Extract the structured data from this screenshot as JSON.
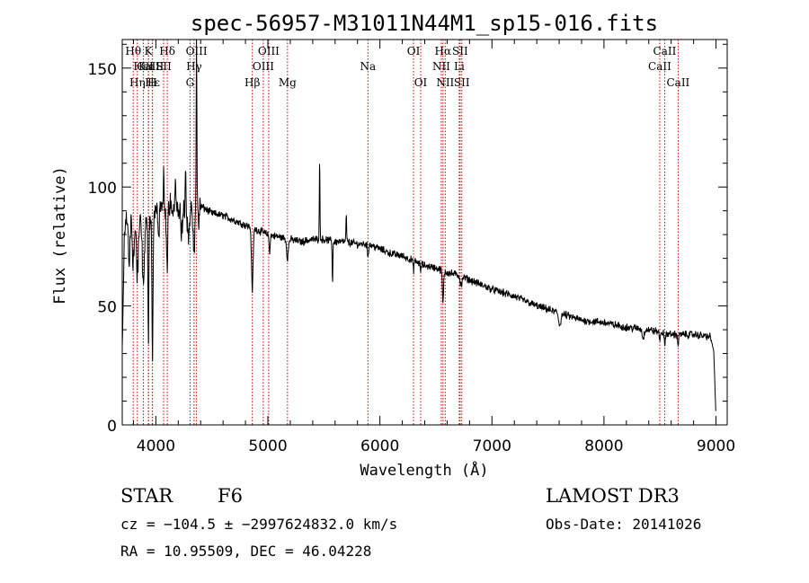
{
  "chart_data": {
    "type": "line",
    "title": "spec-56957-M31011N44M1_sp15-016.fits",
    "xlabel": "Wavelength (Å)",
    "ylabel": "Flux (relative)",
    "xlim": [
      3700,
      9100
    ],
    "ylim": [
      0,
      162
    ],
    "xticks": [
      4000,
      5000,
      6000,
      7000,
      8000,
      9000
    ],
    "yticks": [
      0,
      50,
      100,
      150
    ],
    "line_color": "#000000",
    "marker_color": "#cc0000",
    "continuum": [
      [
        3700,
        30
      ],
      [
        3720,
        80
      ],
      [
        3750,
        92
      ],
      [
        3800,
        84
      ],
      [
        3850,
        86
      ],
      [
        3900,
        88
      ],
      [
        3950,
        87
      ],
      [
        4000,
        90
      ],
      [
        4050,
        92
      ],
      [
        4100,
        93
      ],
      [
        4150,
        91
      ],
      [
        4200,
        90
      ],
      [
        4250,
        89
      ],
      [
        4300,
        91
      ],
      [
        4350,
        92
      ],
      [
        4400,
        92
      ],
      [
        4500,
        89
      ],
      [
        4600,
        88
      ],
      [
        4700,
        86
      ],
      [
        4800,
        84
      ],
      [
        4900,
        82
      ],
      [
        5000,
        80
      ],
      [
        5100,
        79
      ],
      [
        5200,
        78
      ],
      [
        5300,
        77
      ],
      [
        5400,
        78
      ],
      [
        5500,
        78
      ],
      [
        5600,
        77
      ],
      [
        5700,
        77
      ],
      [
        5800,
        76
      ],
      [
        5900,
        76
      ],
      [
        6000,
        74
      ],
      [
        6100,
        72
      ],
      [
        6200,
        71
      ],
      [
        6300,
        69
      ],
      [
        6400,
        67
      ],
      [
        6500,
        66
      ],
      [
        6600,
        64
      ],
      [
        6700,
        63
      ],
      [
        6800,
        61
      ],
      [
        6900,
        59
      ],
      [
        7000,
        57
      ],
      [
        7200,
        54
      ],
      [
        7400,
        50
      ],
      [
        7600,
        47
      ],
      [
        7800,
        44
      ],
      [
        8000,
        43
      ],
      [
        8200,
        41
      ],
      [
        8400,
        40
      ],
      [
        8600,
        38
      ],
      [
        8800,
        38
      ],
      [
        8950,
        37
      ],
      [
        8980,
        31
      ],
      [
        9000,
        3
      ]
    ],
    "features": [
      [
        3730,
        1,
        4
      ],
      [
        3760,
        -25,
        7
      ],
      [
        3798,
        -18,
        8
      ],
      [
        3835,
        -22,
        8
      ],
      [
        3889,
        -30,
        9
      ],
      [
        3933,
        -55,
        4
      ],
      [
        3970,
        -60,
        5
      ],
      [
        4026,
        -12,
        4
      ],
      [
        4070,
        18,
        3
      ],
      [
        4101,
        -25,
        8
      ],
      [
        4110,
        14,
        3
      ],
      [
        4175,
        15,
        3
      ],
      [
        4230,
        -10,
        6
      ],
      [
        4265,
        18,
        3
      ],
      [
        4290,
        -12,
        8
      ],
      [
        4340,
        -20,
        8
      ],
      [
        4363,
        75,
        3
      ],
      [
        4383,
        -8,
        4
      ],
      [
        4861,
        -26,
        7
      ],
      [
        5015,
        -7,
        5
      ],
      [
        5175,
        -8,
        8
      ],
      [
        5462,
        33,
        3
      ],
      [
        5577,
        -18,
        3
      ],
      [
        5700,
        11,
        3
      ],
      [
        5893,
        -5,
        5
      ],
      [
        6300,
        -4,
        4
      ],
      [
        6364,
        -3,
        4
      ],
      [
        6563,
        -14,
        5
      ],
      [
        6718,
        -3,
        5
      ],
      [
        6731,
        -3,
        5
      ],
      [
        7605,
        -5,
        10
      ],
      [
        8350,
        -4,
        8
      ],
      [
        8498,
        -3,
        5
      ],
      [
        8542,
        -5,
        5
      ],
      [
        8662,
        -4,
        5
      ]
    ],
    "noise_sigma": 1.3,
    "lines": [
      {
        "label": "CaII",
        "wavelength": 3934,
        "row": 1
      },
      {
        "label": "CaII",
        "wavelength": 3969,
        "row": 1
      },
      {
        "label": "Hθ",
        "wavelength": 3798,
        "row": 0
      },
      {
        "label": "Hη",
        "wavelength": 3835,
        "row": 2
      },
      {
        "label": "HeI",
        "wavelength": 3889,
        "row": 1
      },
      {
        "label": "Hε",
        "wavelength": 3970,
        "row": 2
      },
      {
        "label": "K",
        "wavelength": 3934,
        "row": 0
      },
      {
        "label": "H",
        "wavelength": 3968,
        "row": 2
      },
      {
        "label": "Hδ",
        "wavelength": 4102,
        "row": 0
      },
      {
        "label": "SII",
        "wavelength": 4069,
        "row": 1
      },
      {
        "label": "G",
        "wavelength": 4305,
        "row": 2
      },
      {
        "label": "Hγ",
        "wavelength": 4341,
        "row": 1
      },
      {
        "label": "OIII",
        "wavelength": 4363,
        "row": 0
      },
      {
        "label": "Hβ",
        "wavelength": 4861,
        "row": 2
      },
      {
        "label": "OIII",
        "wavelength": 4959,
        "row": 1
      },
      {
        "label": "OIII",
        "wavelength": 5007,
        "row": 0
      },
      {
        "label": "Mg",
        "wavelength": 5175,
        "row": 2
      },
      {
        "label": "Na",
        "wavelength": 5893,
        "row": 1
      },
      {
        "label": "OI",
        "wavelength": 6300,
        "row": 0
      },
      {
        "label": "OI",
        "wavelength": 6364,
        "row": 2
      },
      {
        "label": "Hα",
        "wavelength": 6563,
        "row": 0
      },
      {
        "label": "NII",
        "wavelength": 6548,
        "row": 1
      },
      {
        "label": "NII",
        "wavelength": 6583,
        "row": 2
      },
      {
        "label": "SII",
        "wavelength": 6716,
        "row": 0
      },
      {
        "label": "SII",
        "wavelength": 6731,
        "row": 2
      },
      {
        "label": "Li",
        "wavelength": 6708,
        "row": 1
      },
      {
        "label": "CaII",
        "wavelength": 8498,
        "row": 1
      },
      {
        "label": "CaII",
        "wavelength": 8542,
        "row": 0
      },
      {
        "label": "CaII",
        "wavelength": 8662,
        "row": 2
      }
    ]
  },
  "footer": {
    "object_class": "STAR",
    "subclass": "F6",
    "survey": "LAMOST DR3",
    "cz": "cz = −104.5 ± −2997624832.0 km/s",
    "obs_date": "Obs-Date: 20141026",
    "coords": "RA =  10.95509, DEC =  46.04228"
  }
}
